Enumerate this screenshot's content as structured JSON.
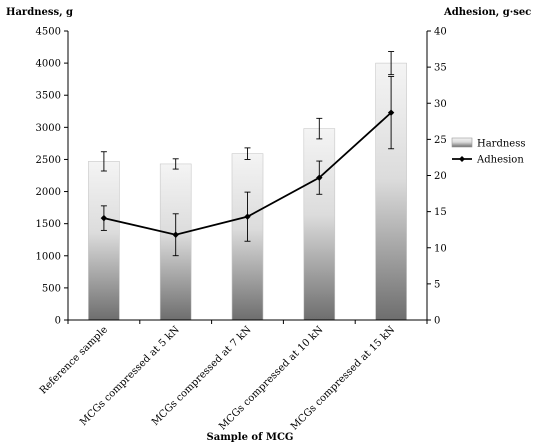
{
  "chart_data": {
    "type": "bar",
    "xlabel": "Sample of MCG",
    "categories": [
      "Reference sample",
      "MCGs compressed at 5 kN",
      "MCGs compressed at 7 kN",
      "MCGs compressed at 10 kN",
      "MCGs compressed at 15 kN"
    ],
    "y_left": {
      "label": "Hardness, g",
      "ylim": [
        0,
        4500
      ],
      "ticks": [
        0,
        500,
        1000,
        1500,
        2000,
        2500,
        3000,
        3500,
        4000,
        4500
      ]
    },
    "y_right": {
      "label": "Adhesion, g·sec",
      "ylim": [
        0,
        40
      ],
      "ticks": [
        0,
        5,
        10,
        15,
        20,
        25,
        30,
        35,
        40
      ]
    },
    "series": [
      {
        "name": "Hardness",
        "kind": "bar",
        "axis": "left",
        "values": [
          2470,
          2430,
          2590,
          2980,
          4000
        ],
        "errors": [
          150,
          80,
          90,
          160,
          180
        ]
      },
      {
        "name": "Adhesion",
        "kind": "line",
        "axis": "right",
        "values": [
          14.1,
          11.8,
          14.3,
          19.7,
          28.7
        ],
        "errors": [
          1.7,
          2.9,
          3.4,
          2.3,
          5.0
        ]
      }
    ],
    "legend": "right",
    "grid": false,
    "colors": {
      "bar_top": "#f4f4f4",
      "bar_bottom": "#6e6e6e",
      "line": "#000000"
    }
  }
}
